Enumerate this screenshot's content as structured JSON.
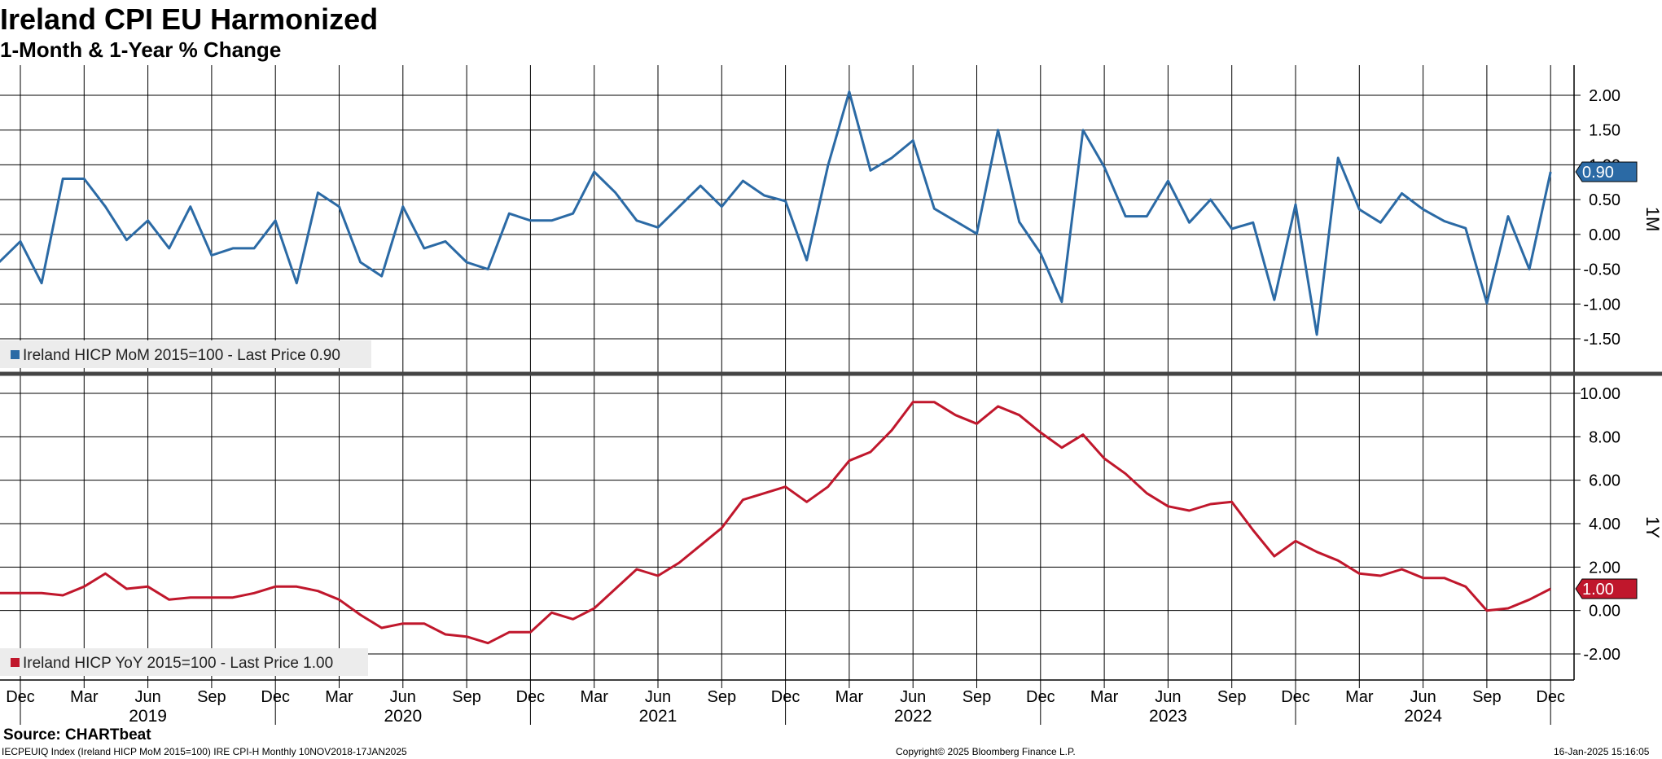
{
  "header": {
    "title": "Ireland CPI EU Harmonized",
    "subtitle": "1-Month & 1-Year % Change"
  },
  "footer": {
    "source": "Source: CHARTbeat",
    "ticker": "IECPEUIQ Index (Ireland HICP MoM 2015=100) IRE CPI-H  Monthly 10NOV2018-17JAN2025",
    "copyright": "Copyright© 2025 Bloomberg Finance L.P.",
    "timestamp": "16-Jan-2025 15:16:05"
  },
  "colors": {
    "mom": "#2b6aa5",
    "yoy": "#c0172c",
    "grid": "#000000",
    "legend_bg": "#ececec"
  },
  "chart_data": [
    {
      "type": "line",
      "panel": "top",
      "axis_label": "1M",
      "legend": "Ireland HICP MoM 2015=100 - Last Price 0.90",
      "last_price": "0.90",
      "ylim": [
        -2.0,
        2.3
      ],
      "yticks": [
        "2.00",
        "1.50",
        "1.00",
        "0.50",
        "0.00",
        "-0.50",
        "-1.00",
        "-1.50"
      ],
      "start_month": "2018-11",
      "series": [
        {
          "name": "Ireland HICP MoM 2015=100",
          "values": [
            -0.4,
            -0.1,
            -0.7,
            0.8,
            0.8,
            0.4,
            -0.08,
            0.2,
            -0.2,
            0.4,
            -0.3,
            -0.2,
            -0.2,
            0.2,
            -0.7,
            0.6,
            0.4,
            -0.4,
            -0.6,
            0.4,
            -0.2,
            -0.1,
            -0.4,
            -0.5,
            0.3,
            0.2,
            0.2,
            0.3,
            0.9,
            0.6,
            0.2,
            0.1,
            0.4,
            0.7,
            0.4,
            0.77,
            0.56,
            0.48,
            -0.37,
            0.99,
            2.05,
            0.92,
            1.1,
            1.35,
            0.37,
            0.19,
            0.01,
            1.5,
            0.18,
            -0.27,
            -0.97,
            1.5,
            0.97,
            0.26,
            0.26,
            0.77,
            0.17,
            0.5,
            0.08,
            0.17,
            -0.94,
            0.43,
            -1.44,
            1.1,
            0.36,
            0.17,
            0.59,
            0.36,
            0.19,
            0.09,
            -0.99,
            0.26,
            -0.5,
            0.9
          ]
        }
      ]
    },
    {
      "type": "line",
      "panel": "bottom",
      "axis_label": "1Y",
      "legend": "Ireland HICP YoY 2015=100 - Last Price 1.00",
      "last_price": "1.00",
      "ylim": [
        -2.9,
        10.3
      ],
      "yticks": [
        "10.00",
        "8.00",
        "6.00",
        "4.00",
        "2.00",
        "0.00",
        "-2.00"
      ],
      "start_month": "2018-11",
      "series": [
        {
          "name": "Ireland HICP YoY 2015=100",
          "values": [
            0.8,
            0.8,
            0.8,
            0.7,
            1.1,
            1.7,
            1.0,
            1.1,
            0.5,
            0.6,
            0.6,
            0.6,
            0.8,
            1.1,
            1.1,
            0.9,
            0.5,
            -0.2,
            -0.8,
            -0.6,
            -0.6,
            -1.1,
            -1.2,
            -1.5,
            -1.0,
            -1.0,
            -0.1,
            -0.4,
            0.1,
            1.0,
            1.9,
            1.6,
            2.2,
            3.0,
            3.8,
            5.1,
            5.4,
            5.7,
            5.0,
            5.7,
            6.9,
            7.3,
            8.3,
            9.6,
            9.6,
            9.0,
            8.6,
            9.4,
            9.0,
            8.2,
            7.5,
            8.1,
            7.0,
            6.3,
            5.4,
            4.8,
            4.6,
            4.9,
            5.0,
            3.7,
            2.5,
            3.2,
            2.7,
            2.3,
            1.7,
            1.6,
            1.9,
            1.5,
            1.5,
            1.1,
            0.0,
            0.1,
            0.5,
            1.0
          ]
        }
      ]
    }
  ],
  "x_axis": {
    "month_labels": [
      "Dec",
      "Mar",
      "Jun",
      "Sep",
      "Dec",
      "Mar",
      "Jun",
      "Sep",
      "Dec",
      "Mar",
      "Jun",
      "Sep",
      "Dec",
      "Mar",
      "Jun",
      "Sep",
      "Dec",
      "Mar",
      "Jun",
      "Sep",
      "Dec",
      "Mar",
      "Jun",
      "Sep",
      "Dec"
    ],
    "year_labels": [
      "2019",
      "2020",
      "2021",
      "2022",
      "2023",
      "2024"
    ]
  }
}
